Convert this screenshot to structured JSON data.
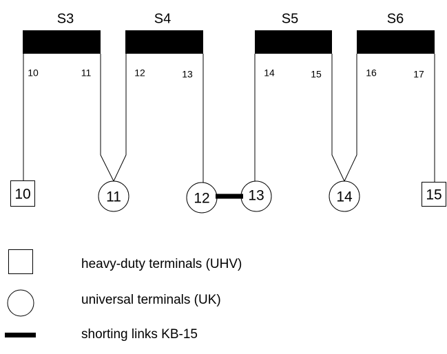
{
  "switches": [
    {
      "label": "S3",
      "pins": [
        "10",
        "11"
      ]
    },
    {
      "label": "S4",
      "pins": [
        "12",
        "13"
      ]
    },
    {
      "label": "S5",
      "pins": [
        "14",
        "15"
      ]
    },
    {
      "label": "S6",
      "pins": [
        "16",
        "17"
      ]
    }
  ],
  "terminals": [
    {
      "label": "10"
    },
    {
      "label": "11"
    },
    {
      "label": "12"
    },
    {
      "label": "13"
    },
    {
      "label": "14"
    },
    {
      "label": "15"
    }
  ],
  "legend": [
    {
      "label": "heavy-duty terminals (UHV)"
    },
    {
      "label": "universal terminals (UK)"
    },
    {
      "label": "shorting links KB-15"
    }
  ]
}
